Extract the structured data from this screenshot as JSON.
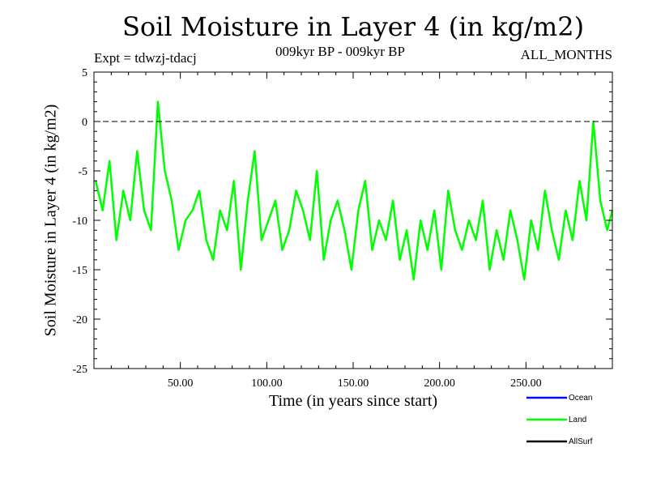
{
  "chart_data": {
    "type": "line",
    "title": "Soil Moisture in Layer 4 (in kg/m2)",
    "experiment": "Expt = tdwzj-tdacj",
    "period": "009kyr BP - 009kyr BP",
    "months": "ALL_MONTHS",
    "xlabel": "Time (in years since start)",
    "ylabel": "Soil Moisture in Layer 4 (in kg/m2)",
    "xlim": [
      0,
      300
    ],
    "ylim": [
      -25,
      5
    ],
    "x_ticks": [
      50,
      100,
      150,
      200,
      250
    ],
    "x_tick_labels": [
      "50.00",
      "100.00",
      "150.00",
      "200.00",
      "250.00"
    ],
    "y_ticks": [
      5,
      0,
      -5,
      -10,
      -15,
      -20,
      -25
    ],
    "y_tick_labels": [
      "5",
      "0",
      "-5",
      "-10",
      "-15",
      "-20",
      "-25"
    ],
    "reference_line": 0,
    "series": [
      {
        "name": "Ocean",
        "color": "#0000ff",
        "x": [],
        "values": []
      },
      {
        "name": "Land",
        "color": "#00ff00",
        "x": [
          1,
          5,
          9,
          13,
          17,
          21,
          25,
          29,
          33,
          37,
          41,
          45,
          49,
          53,
          57,
          61,
          65,
          69,
          73,
          77,
          81,
          85,
          89,
          93,
          97,
          101,
          105,
          109,
          113,
          117,
          121,
          125,
          129,
          133,
          137,
          141,
          145,
          149,
          153,
          157,
          161,
          165,
          169,
          173,
          177,
          181,
          185,
          189,
          193,
          197,
          201,
          205,
          209,
          213,
          217,
          221,
          225,
          229,
          233,
          237,
          241,
          245,
          249,
          253,
          257,
          261,
          265,
          269,
          273,
          277,
          281,
          285,
          289,
          293,
          297,
          300
        ],
        "values": [
          -6,
          -9,
          -4,
          -12,
          -7,
          -10,
          -3,
          -9,
          -11,
          2,
          -5,
          -8,
          -13,
          -10,
          -9,
          -7,
          -12,
          -14,
          -9,
          -11,
          -6,
          -15,
          -8,
          -3,
          -12,
          -10,
          -8,
          -13,
          -11,
          -7,
          -9,
          -12,
          -5,
          -14,
          -10,
          -8,
          -11,
          -15,
          -9,
          -6,
          -13,
          -10,
          -12,
          -8,
          -14,
          -11,
          -16,
          -10,
          -13,
          -9,
          -15,
          -7,
          -11,
          -13,
          -10,
          -12,
          -8,
          -15,
          -11,
          -14,
          -9,
          -12,
          -16,
          -10,
          -13,
          -7,
          -11,
          -14,
          -9,
          -12,
          -6,
          -10,
          0,
          -8,
          -11,
          -9
        ]
      },
      {
        "name": "AllSurf",
        "color": "#000000",
        "x": [],
        "values": []
      }
    ],
    "legend": [
      "Ocean",
      "Land",
      "AllSurf"
    ],
    "legend_placement": "bottom-right"
  }
}
